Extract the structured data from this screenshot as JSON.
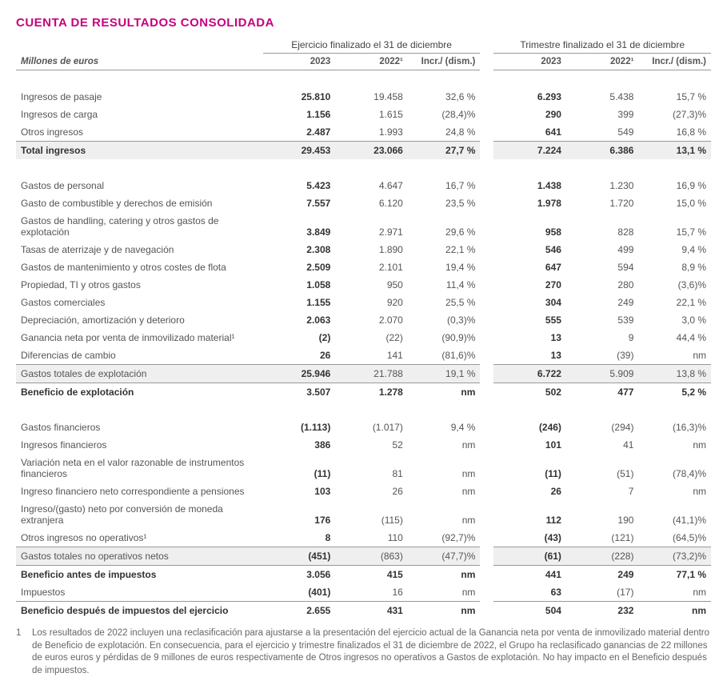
{
  "title": "CUENTA DE RESULTADOS CONSOLIDADA",
  "units": "Millones de euros",
  "periods": {
    "year": "Ejercicio finalizado el 31 de diciembre",
    "quarter": "Trimestre finalizado el 31 de diciembre"
  },
  "cols": {
    "c2023": "2023",
    "c2022": "2022¹",
    "incr": "Incr./\n(dism.)"
  },
  "rows": [
    {
      "type": "spacer"
    },
    {
      "label": "Ingresos de pasaje",
      "y23": "25.810",
      "y22": "19.458",
      "yi": "32,6 %",
      "q23": "6.293",
      "q22": "5.438",
      "qi": "15,7 %"
    },
    {
      "label": "Ingresos de carga",
      "y23": "1.156",
      "y22": "1.615",
      "yi": "(28,4)%",
      "q23": "290",
      "q22": "399",
      "qi": "(27,3)%"
    },
    {
      "label": "Otros ingresos",
      "y23": "2.487",
      "y22": "1.993",
      "yi": "24,8 %",
      "q23": "641",
      "q22": "549",
      "qi": "16,8 %"
    },
    {
      "label": "Total ingresos",
      "y23": "29.453",
      "y22": "23.066",
      "yi": "27,7 %",
      "q23": "7.224",
      "q22": "6.386",
      "qi": "13,1 %",
      "bold": true,
      "borderTop": true,
      "shade": true
    },
    {
      "type": "spacer"
    },
    {
      "label": "Gastos de personal",
      "y23": "5.423",
      "y22": "4.647",
      "yi": "16,7 %",
      "q23": "1.438",
      "q22": "1.230",
      "qi": "16,9 %"
    },
    {
      "label": "Gasto de combustible y derechos de emisión",
      "y23": "7.557",
      "y22": "6.120",
      "yi": "23,5 %",
      "q23": "1.978",
      "q22": "1.720",
      "qi": "15,0 %"
    },
    {
      "label": "Gastos de handling, catering y otros gastos de explotación",
      "y23": "3.849",
      "y22": "2.971",
      "yi": "29,6 %",
      "q23": "958",
      "q22": "828",
      "qi": "15,7 %"
    },
    {
      "label": "Tasas de aterrizaje y de navegación",
      "y23": "2.308",
      "y22": "1.890",
      "yi": "22,1 %",
      "q23": "546",
      "q22": "499",
      "qi": "9,4 %"
    },
    {
      "label": "Gastos de mantenimiento y otros costes de flota",
      "y23": "2.509",
      "y22": "2.101",
      "yi": "19,4 %",
      "q23": "647",
      "q22": "594",
      "qi": "8,9 %"
    },
    {
      "label": "Propiedad, TI y otros gastos",
      "y23": "1.058",
      "y22": "950",
      "yi": "11,4 %",
      "q23": "270",
      "q22": "280",
      "qi": "(3,6)%"
    },
    {
      "label": "Gastos comerciales",
      "y23": "1.155",
      "y22": "920",
      "yi": "25,5 %",
      "q23": "304",
      "q22": "249",
      "qi": "22,1 %"
    },
    {
      "label": "Depreciación, amortización y deterioro",
      "y23": "2.063",
      "y22": "2.070",
      "yi": "(0,3)%",
      "q23": "555",
      "q22": "539",
      "qi": "3,0 %"
    },
    {
      "label": "Ganancia neta por venta de inmovilizado material¹",
      "y23": "(2)",
      "y22": "(22)",
      "yi": "(90,9)%",
      "q23": "13",
      "q22": "9",
      "qi": "44,4 %"
    },
    {
      "label": "Diferencias de cambio",
      "y23": "26",
      "y22": "141",
      "yi": "(81,6)%",
      "q23": "13",
      "q22": "(39)",
      "qi": "nm"
    },
    {
      "label": "Gastos totales de explotación",
      "y23": "25.946",
      "y22": "21.788",
      "yi": "19,1 %",
      "q23": "6.722",
      "q22": "5.909",
      "qi": "13,8 %",
      "borderTop": true,
      "shade": true
    },
    {
      "label": "Beneficio de explotación",
      "y23": "3.507",
      "y22": "1.278",
      "yi": "nm",
      "q23": "502",
      "q22": "477",
      "qi": "5,2 %",
      "bold": true,
      "borderTop": true
    },
    {
      "type": "spacer"
    },
    {
      "label": "Gastos financieros",
      "y23": "(1.113)",
      "y22": "(1.017)",
      "yi": "9,4 %",
      "q23": "(246)",
      "q22": "(294)",
      "qi": "(16,3)%"
    },
    {
      "label": "Ingresos financieros",
      "y23": "386",
      "y22": "52",
      "yi": "nm",
      "q23": "101",
      "q22": "41",
      "qi": "nm"
    },
    {
      "label": "Variación neta en el valor razonable de instrumentos financieros",
      "y23": "(11)",
      "y22": "81",
      "yi": "nm",
      "q23": "(11)",
      "q22": "(51)",
      "qi": "(78,4)%"
    },
    {
      "label": "Ingreso financiero neto correspondiente a pensiones",
      "y23": "103",
      "y22": "26",
      "yi": "nm",
      "q23": "26",
      "q22": "7",
      "qi": "nm"
    },
    {
      "label": "Ingreso/(gasto) neto por conversión de moneda extranjera",
      "y23": "176",
      "y22": "(115)",
      "yi": "nm",
      "q23": "112",
      "q22": "190",
      "qi": "(41,1)%"
    },
    {
      "label": "Otros ingresos no operativos¹",
      "y23": "8",
      "y22": "110",
      "yi": "(92,7)%",
      "q23": "(43)",
      "q22": "(121)",
      "qi": "(64,5)%"
    },
    {
      "label": "Gastos totales no operativos netos",
      "y23": "(451)",
      "y22": "(863)",
      "yi": "(47,7)%",
      "q23": "(61)",
      "q22": "(228)",
      "qi": "(73,2)%",
      "borderTop": true,
      "shade": true
    },
    {
      "label": "Beneficio antes de impuestos",
      "y23": "3.056",
      "y22": "415",
      "yi": "nm",
      "q23": "441",
      "q22": "249",
      "qi": "77,1 %",
      "bold": true,
      "borderTop": true
    },
    {
      "label": "Impuestos",
      "y23": "(401)",
      "y22": "16",
      "yi": "nm",
      "q23": "63",
      "q22": "(17)",
      "qi": "nm"
    },
    {
      "label": "Beneficio después de impuestos del ejercicio",
      "y23": "2.655",
      "y22": "431",
      "yi": "nm",
      "q23": "504",
      "q22": "232",
      "qi": "nm",
      "bold": true,
      "borderTop": true
    }
  ],
  "footnote": {
    "marker": "1",
    "text": "Los resultados de 2022 incluyen una reclasificación para ajustarse a la presentación del ejercicio actual de la Ganancia neta por venta de inmovilizado material dentro de Beneficio de explotación. En consecuencia, para el ejercicio y trimestre finalizados el 31 de diciembre de 2022, el Grupo ha reclasificado ganancias de 22 millones de euros euros y pérdidas de 9 millones de euros respectivamente de Otros ingresos no operativos a Gastos de explotación. No hay impacto en el Beneficio después de impuestos."
  },
  "colors": {
    "accent": "#c6007e",
    "border": "#999999",
    "shade": "#efefef",
    "text": "#555555"
  }
}
